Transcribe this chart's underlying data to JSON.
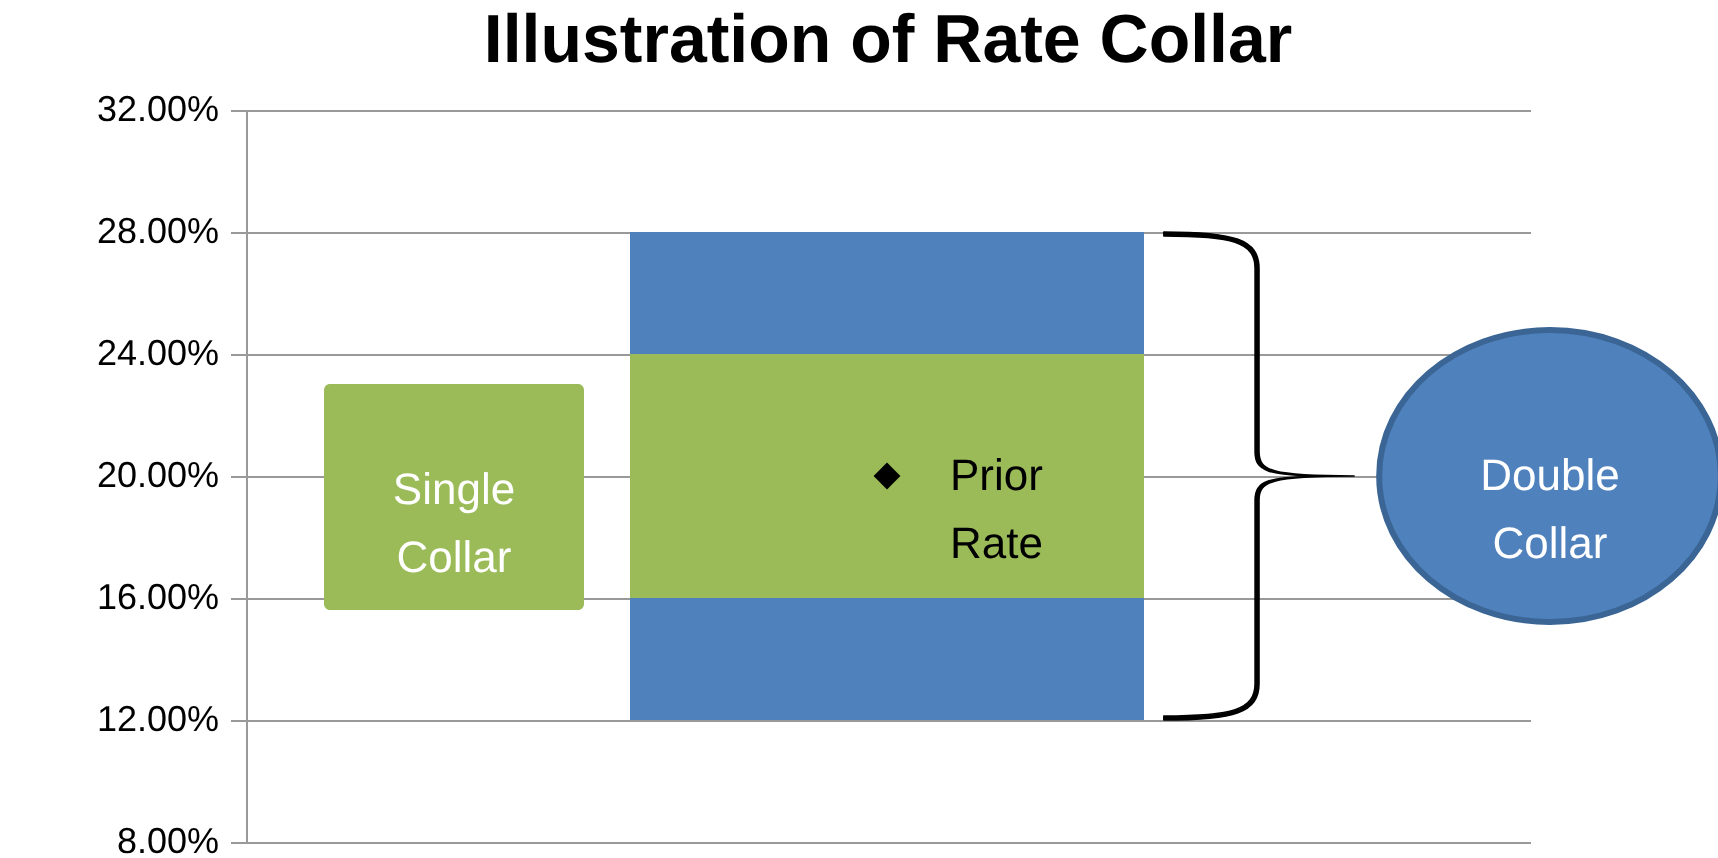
{
  "chart_data": {
    "type": "bar",
    "title": "Illustration of Rate Collar",
    "categories": [
      null
    ],
    "series": [
      {
        "color": "#4f81bd",
        "base": [
          12
        ],
        "values": [
          4
        ]
      },
      {
        "color": "#9bbb59",
        "base": [
          16
        ],
        "values": [
          8
        ]
      },
      {
        "color": "#4f81bd",
        "base": [
          24
        ],
        "values": [
          4
        ]
      },
      {
        "type": "scatter",
        "color": "#000000",
        "marker": "diamond",
        "values": [
          20
        ]
      }
    ],
    "annotations": [
      "Single Collar",
      "Prior Rate",
      "Double Collar"
    ],
    "ylim": [
      8,
      32
    ],
    "yticks": [
      {
        "value": 8,
        "label": "8.00%"
      },
      {
        "value": 12,
        "label": "12.00%"
      },
      {
        "value": 16,
        "label": "16.00%"
      },
      {
        "value": 20,
        "label": "20.00%"
      },
      {
        "value": 24,
        "label": "24.00%"
      },
      {
        "value": 28,
        "label": "28.00%"
      },
      {
        "value": 32,
        "label": "32.00%"
      }
    ],
    "grid": "y"
  }
}
